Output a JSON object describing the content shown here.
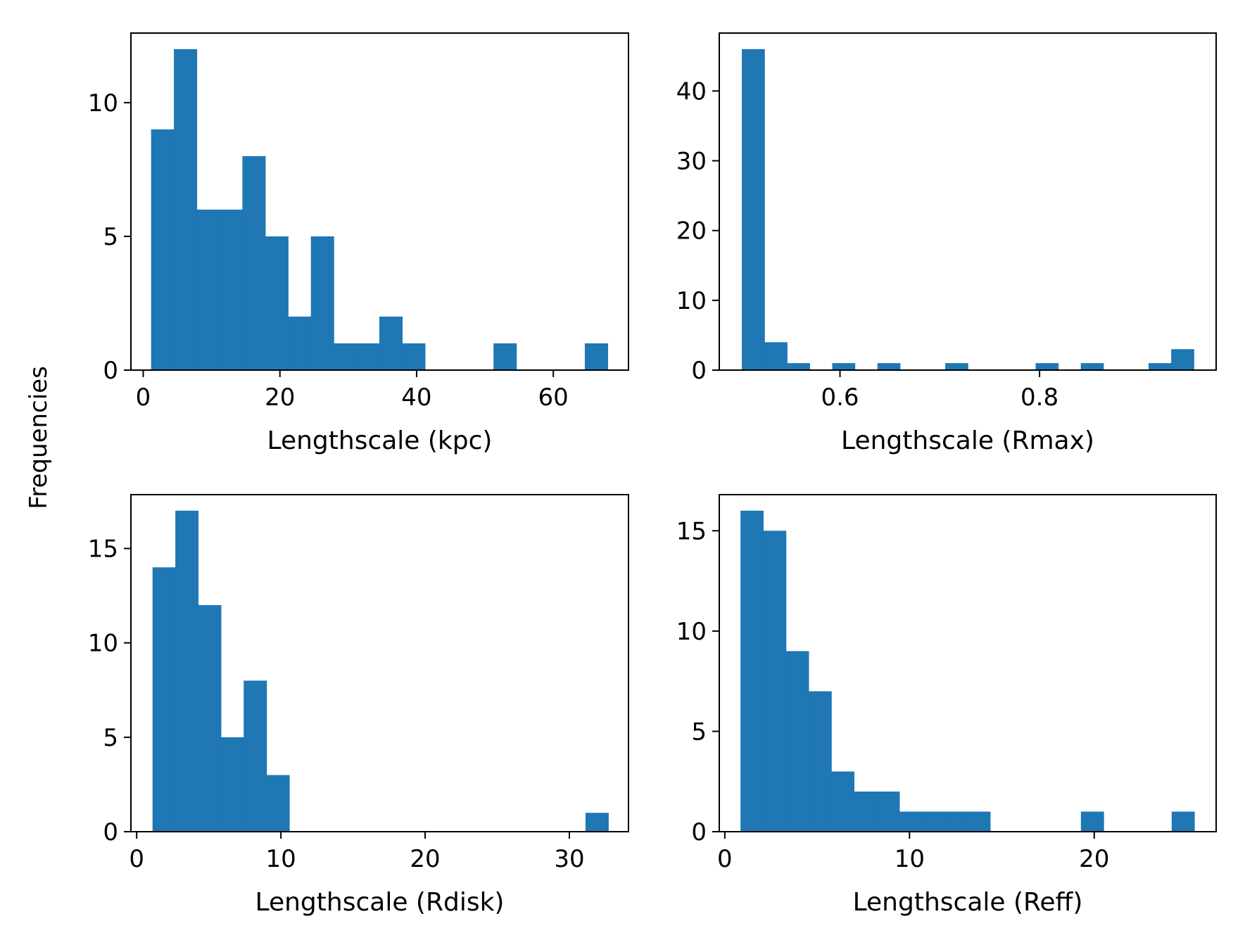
{
  "figure": {
    "ylabel": "Frequencies",
    "bar_color": "#1f77b4"
  },
  "chart_data": [
    {
      "type": "bar",
      "subtype": "histogram",
      "xlabel": "Lengthscale (kpc)",
      "xlim": [
        -1.8,
        71.0
      ],
      "ylim": [
        0,
        12.6
      ],
      "xticks": [
        0,
        20,
        40,
        60
      ],
      "yticks": [
        0,
        5,
        10
      ],
      "bin_start": 1.15,
      "bin_width": 3.34,
      "counts": [
        9,
        12,
        6,
        6,
        8,
        5,
        2,
        5,
        1,
        1,
        2,
        1,
        0,
        0,
        0,
        1,
        0,
        0,
        0,
        1
      ],
      "grid": false
    },
    {
      "type": "bar",
      "subtype": "histogram",
      "xlabel": "Lengthscale (Rmax)",
      "xlim": [
        0.479,
        0.977
      ],
      "ylim": [
        0,
        48.3
      ],
      "xticks": [
        0.6,
        0.8
      ],
      "yticks": [
        0,
        10,
        20,
        30,
        40
      ],
      "bin_start": 0.5016,
      "bin_width": 0.02265,
      "counts": [
        46,
        4,
        1,
        0,
        1,
        0,
        1,
        0,
        0,
        1,
        0,
        0,
        0,
        1,
        0,
        1,
        0,
        0,
        1,
        3
      ],
      "grid": false
    },
    {
      "type": "bar",
      "subtype": "histogram",
      "xlabel": "Lengthscale (Rdisk)",
      "xlim": [
        -0.4,
        34.1
      ],
      "ylim": [
        0,
        17.85
      ],
      "xticks": [
        0,
        10,
        20,
        30
      ],
      "yticks": [
        0,
        5,
        10,
        15
      ],
      "bin_start": 1.1,
      "bin_width": 1.58,
      "counts": [
        14,
        17,
        12,
        5,
        8,
        3,
        0,
        0,
        0,
        0,
        0,
        0,
        0,
        0,
        0,
        0,
        0,
        0,
        0,
        1
      ],
      "grid": false
    },
    {
      "type": "bar",
      "subtype": "histogram",
      "xlabel": "Lengthscale (Reff)",
      "xlim": [
        -0.3,
        26.6
      ],
      "ylim": [
        0,
        16.8
      ],
      "xticks": [
        0,
        10,
        20
      ],
      "yticks": [
        0,
        5,
        10,
        15
      ],
      "bin_start": 0.85,
      "bin_width": 1.2285,
      "counts": [
        16,
        15,
        9,
        7,
        3,
        2,
        2,
        1,
        1,
        1,
        1,
        0,
        0,
        0,
        0,
        1,
        0,
        0,
        0,
        1
      ],
      "grid": false
    }
  ]
}
